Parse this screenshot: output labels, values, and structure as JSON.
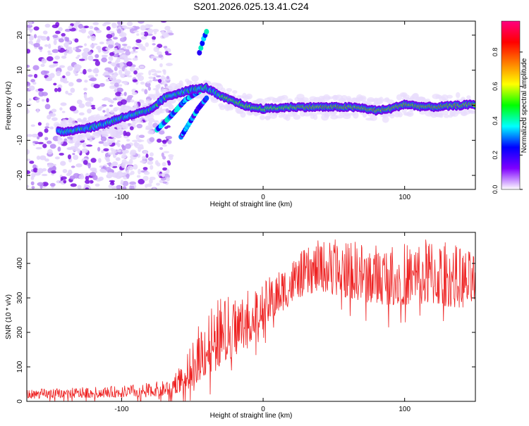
{
  "title": "S201.2026.025.13.41.C24",
  "chart_data": [
    {
      "type": "heatmap",
      "name": "spectrogram",
      "xlabel": "Height of straight line (km)",
      "ylabel": "Frequency (Hz)",
      "xlim": [
        -167,
        150
      ],
      "ylim": [
        -24,
        24
      ],
      "xticks": [
        -100,
        0,
        100
      ],
      "yticks": [
        -20,
        -10,
        0,
        10,
        20
      ],
      "ridge": [
        [
          -140,
          -7.5
        ],
        [
          -130,
          -6.8
        ],
        [
          -120,
          -6.2
        ],
        [
          -110,
          -5
        ],
        [
          -100,
          -3.5
        ],
        [
          -90,
          -2.5
        ],
        [
          -80,
          -1.5
        ],
        [
          -70,
          2
        ],
        [
          -60,
          3.5
        ],
        [
          -50,
          4.5
        ],
        [
          -40,
          5
        ],
        [
          -30,
          2.5
        ],
        [
          -20,
          1
        ],
        [
          -10,
          -0.5
        ],
        [
          0,
          -1
        ],
        [
          10,
          -0.8
        ],
        [
          20,
          -0.5
        ],
        [
          40,
          -0.5
        ],
        [
          60,
          -0.5
        ],
        [
          70,
          -0.8
        ],
        [
          80,
          -1.5
        ],
        [
          90,
          -1
        ],
        [
          100,
          0.3
        ],
        [
          110,
          -0.3
        ],
        [
          120,
          -0.5
        ],
        [
          140,
          0
        ],
        [
          150,
          0.3
        ]
      ],
      "branches": [
        [
          [
            -75,
            -7
          ],
          [
            -65,
            -3
          ],
          [
            -55,
            1.5
          ],
          [
            -45,
            4
          ]
        ],
        [
          [
            -58,
            -9
          ],
          [
            -52,
            -5
          ],
          [
            -46,
            -1
          ],
          [
            -40,
            2
          ]
        ],
        [
          [
            -45,
            15
          ],
          [
            -42,
            19
          ],
          [
            -40,
            21
          ]
        ]
      ],
      "colorbar": {
        "label": "Normalized spectral amplitude",
        "ticks": [
          "0.0",
          "0.2",
          "0.4",
          "0.6",
          "0.8"
        ],
        "colors": [
          "#ffffff",
          "#7f00ff",
          "#0000ff",
          "#00ffff",
          "#00ff00",
          "#ffff00",
          "#ff7f00",
          "#ff0000",
          "#ff0080"
        ]
      }
    },
    {
      "type": "line",
      "name": "snr",
      "xlabel": "Height of straight line (km)",
      "ylabel": "SNR (10 * v/v)",
      "xlim": [
        -167,
        150
      ],
      "ylim": [
        0,
        490
      ],
      "xticks": [
        -100,
        0,
        100
      ],
      "yticks": [
        0,
        100,
        200,
        300,
        400
      ],
      "color": "#ee2222",
      "envelope": [
        [
          -167,
          8,
          35
        ],
        [
          -100,
          12,
          45
        ],
        [
          -70,
          15,
          60
        ],
        [
          -55,
          30,
          120
        ],
        [
          -45,
          60,
          230
        ],
        [
          -35,
          90,
          300
        ],
        [
          -20,
          130,
          310
        ],
        [
          -5,
          190,
          330
        ],
        [
          10,
          250,
          380
        ],
        [
          25,
          300,
          430
        ],
        [
          40,
          320,
          470
        ],
        [
          60,
          300,
          470
        ],
        [
          80,
          280,
          460
        ],
        [
          100,
          280,
          460
        ],
        [
          120,
          280,
          480
        ],
        [
          140,
          270,
          450
        ],
        [
          150,
          280,
          430
        ]
      ]
    }
  ]
}
